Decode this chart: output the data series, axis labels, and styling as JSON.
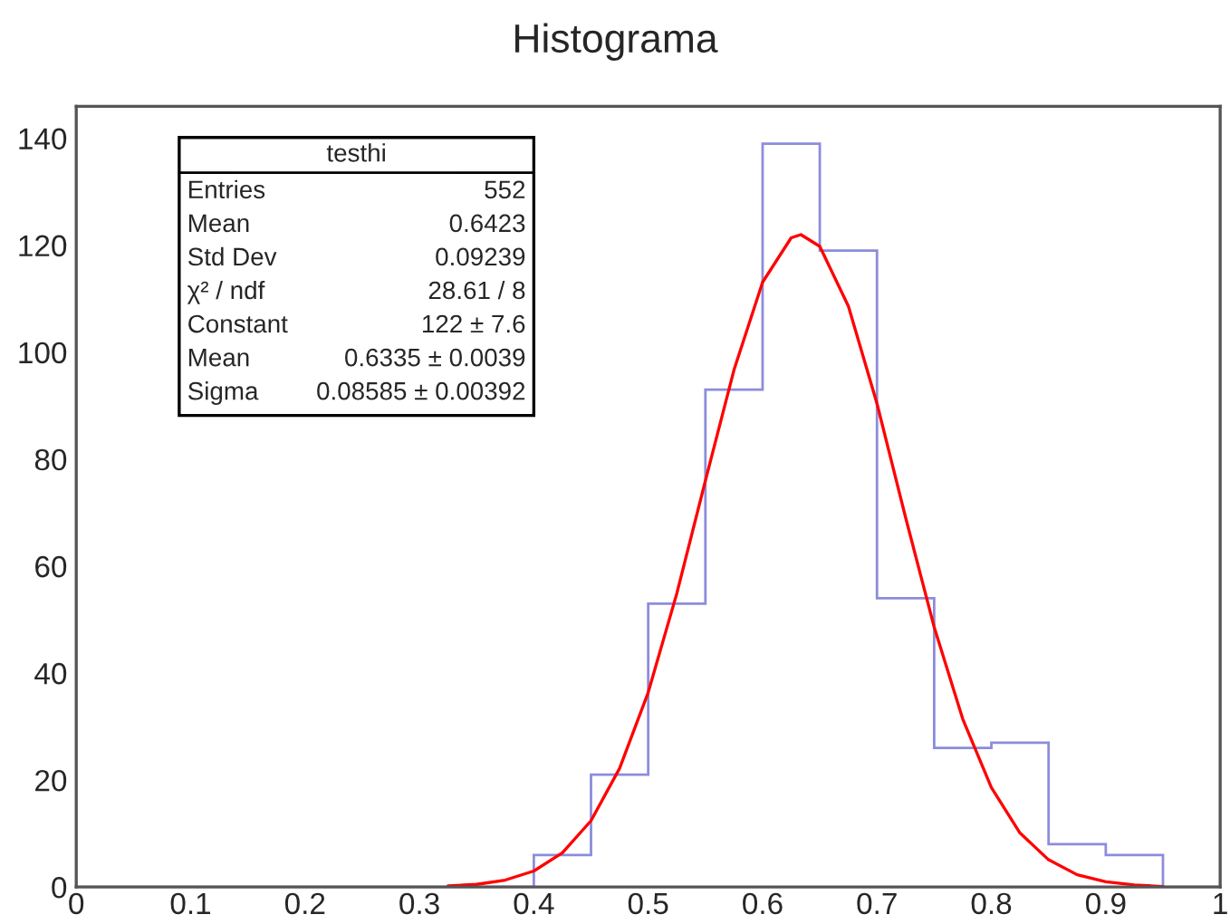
{
  "chart_data": {
    "type": "histogram",
    "title": "Histograma",
    "bins": [
      0,
      0.05,
      0.1,
      0.15,
      0.2,
      0.25,
      0.3,
      0.35,
      0.4,
      0.45,
      0.5,
      0.55,
      0.6,
      0.65,
      0.7,
      0.75,
      0.8,
      0.85,
      0.9,
      0.95,
      1
    ],
    "values": [
      0,
      0,
      0,
      0,
      0,
      0,
      0,
      0,
      6,
      21,
      53,
      93,
      139,
      119,
      54,
      26,
      27,
      8,
      6,
      0
    ],
    "color": "#8c8cdc",
    "series": [
      {
        "type": "line",
        "color": "#ff0000",
        "x": [
          0.325,
          0.35,
          0.375,
          0.4,
          0.425,
          0.45,
          0.475,
          0.5,
          0.525,
          0.55,
          0.575,
          0.6,
          0.625,
          0.6335,
          0.65,
          0.675,
          0.7,
          0.725,
          0.75,
          0.775,
          0.8,
          0.825,
          0.85,
          0.875,
          0.9,
          0.925,
          0.95
        ],
        "values": [
          0.2,
          0.5,
          1.3,
          3.0,
          6.4,
          12.4,
          22.2,
          36.4,
          54.9,
          76.0,
          96.7,
          113.1,
          121.4,
          122,
          119.8,
          108.6,
          90.4,
          69.1,
          48.6,
          31.4,
          18.6,
          10.1,
          5.1,
          2.3,
          1.0,
          0.4,
          0.1
        ]
      }
    ],
    "xlim": [
      0,
      1
    ],
    "xticks": [
      0,
      0.1,
      0.2,
      0.3,
      0.4,
      0.5,
      0.6,
      0.7,
      0.8,
      0.9,
      1
    ],
    "ylim": [
      0,
      146
    ],
    "yticks": [
      0,
      20,
      40,
      60,
      80,
      100,
      120,
      140
    ],
    "grid": false,
    "legend": false,
    "annotations": [
      "testhi",
      "Entries",
      "552",
      "Mean",
      "0.6423",
      "Std Dev",
      "0.09239",
      "χ² / ndf",
      "28.61 / 8",
      "Constant",
      "122 ± 7.6",
      "Mean",
      "0.6335 ± 0.0039",
      "Sigma",
      "0.08585 ± 0.00392"
    ]
  }
}
